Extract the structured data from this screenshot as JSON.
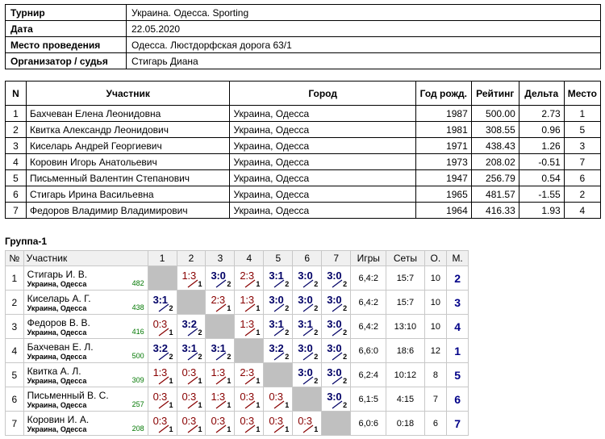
{
  "info": [
    {
      "label": "Турнир",
      "value": "Украина. Одесса.  Sporting"
    },
    {
      "label": "Дата",
      "value": "22.05.2020"
    },
    {
      "label": "Место проведения",
      "value": "Одесса. Люстдорфская дорога 63/1"
    },
    {
      "label": "Организатор / судья",
      "value": "Стигарь Диана"
    }
  ],
  "participants": {
    "headers": [
      "N",
      "Участник",
      "Город",
      "Год рожд.",
      "Рейтинг",
      "Дельта",
      "Место"
    ],
    "rows": [
      [
        "1",
        "Бахчеван Елена Леонидовна",
        "Украина, Одесса",
        "1987",
        "500.00",
        "2.73",
        "1"
      ],
      [
        "2",
        "Квитка Александр Леонидович",
        "Украина, Одесса",
        "1981",
        "308.55",
        "0.96",
        "5"
      ],
      [
        "3",
        "Киселарь Андрей Георгиевич",
        "Украина, Одесса",
        "1971",
        "438.43",
        "1.26",
        "3"
      ],
      [
        "4",
        "Коровин Игорь Анатольевич",
        "Украина, Одесса",
        "1973",
        "208.02",
        "-0.51",
        "7"
      ],
      [
        "5",
        "Письменный Валентин Степанович",
        "Украина, Одесса",
        "1947",
        "256.79",
        "0.54",
        "6"
      ],
      [
        "6",
        "Стигарь Ирина Васильевна",
        "Украина, Одесса",
        "1965",
        "481.57",
        "-1.55",
        "2"
      ],
      [
        "7",
        "Федоров Владимир Владимирович",
        "Украина, Одесса",
        "1964",
        "416.33",
        "1.93",
        "4"
      ]
    ]
  },
  "group": {
    "title": "Группа-1",
    "headers": [
      "№",
      "Участник",
      "1",
      "2",
      "3",
      "4",
      "5",
      "6",
      "7",
      "Игры",
      "Сеты",
      "О.",
      "М."
    ],
    "rows": [
      {
        "no": "1",
        "name": "Стигарь И. В.",
        "city": "Украина, Одесса",
        "rating": "482",
        "cells": [
          null,
          {
            "s": "1:3",
            "r": "1",
            "w": false
          },
          {
            "s": "3:0",
            "r": "2",
            "w": true
          },
          {
            "s": "2:3",
            "r": "1",
            "w": false
          },
          {
            "s": "3:1",
            "r": "2",
            "w": true
          },
          {
            "s": "3:0",
            "r": "2",
            "w": true
          },
          {
            "s": "3:0",
            "r": "2",
            "w": true
          }
        ],
        "games": "6,4:2",
        "sets": "15:7",
        "points": "10",
        "place": "2"
      },
      {
        "no": "2",
        "name": "Киселарь А. Г.",
        "city": "Украина, Одесса",
        "rating": "438",
        "cells": [
          {
            "s": "3:1",
            "r": "2",
            "w": true
          },
          null,
          {
            "s": "2:3",
            "r": "1",
            "w": false
          },
          {
            "s": "1:3",
            "r": "1",
            "w": false
          },
          {
            "s": "3:0",
            "r": "2",
            "w": true
          },
          {
            "s": "3:0",
            "r": "2",
            "w": true
          },
          {
            "s": "3:0",
            "r": "2",
            "w": true
          }
        ],
        "games": "6,4:2",
        "sets": "15:7",
        "points": "10",
        "place": "3"
      },
      {
        "no": "3",
        "name": "Федоров В. В.",
        "city": "Украина, Одесса",
        "rating": "416",
        "cells": [
          {
            "s": "0:3",
            "r": "1",
            "w": false
          },
          {
            "s": "3:2",
            "r": "2",
            "w": true
          },
          null,
          {
            "s": "1:3",
            "r": "1",
            "w": false
          },
          {
            "s": "3:1",
            "r": "2",
            "w": true
          },
          {
            "s": "3:1",
            "r": "2",
            "w": true
          },
          {
            "s": "3:0",
            "r": "2",
            "w": true
          }
        ],
        "games": "6,4:2",
        "sets": "13:10",
        "points": "10",
        "place": "4"
      },
      {
        "no": "4",
        "name": "Бахчеван Е. Л.",
        "city": "Украина, Одесса",
        "rating": "500",
        "cells": [
          {
            "s": "3:2",
            "r": "2",
            "w": true
          },
          {
            "s": "3:1",
            "r": "2",
            "w": true
          },
          {
            "s": "3:1",
            "r": "2",
            "w": true
          },
          null,
          {
            "s": "3:2",
            "r": "2",
            "w": true
          },
          {
            "s": "3:0",
            "r": "2",
            "w": true
          },
          {
            "s": "3:0",
            "r": "2",
            "w": true
          }
        ],
        "games": "6,6:0",
        "sets": "18:6",
        "points": "12",
        "place": "1"
      },
      {
        "no": "5",
        "name": "Квитка А. Л.",
        "city": "Украина, Одесса",
        "rating": "309",
        "cells": [
          {
            "s": "1:3",
            "r": "1",
            "w": false
          },
          {
            "s": "0:3",
            "r": "1",
            "w": false
          },
          {
            "s": "1:3",
            "r": "1",
            "w": false
          },
          {
            "s": "2:3",
            "r": "1",
            "w": false
          },
          null,
          {
            "s": "3:0",
            "r": "2",
            "w": true
          },
          {
            "s": "3:0",
            "r": "2",
            "w": true
          }
        ],
        "games": "6,2:4",
        "sets": "10:12",
        "points": "8",
        "place": "5"
      },
      {
        "no": "6",
        "name": "Письменный В. С.",
        "city": "Украина, Одесса",
        "rating": "257",
        "cells": [
          {
            "s": "0:3",
            "r": "1",
            "w": false
          },
          {
            "s": "0:3",
            "r": "1",
            "w": false
          },
          {
            "s": "1:3",
            "r": "1",
            "w": false
          },
          {
            "s": "0:3",
            "r": "1",
            "w": false
          },
          {
            "s": "0:3",
            "r": "1",
            "w": false
          },
          null,
          {
            "s": "3:0",
            "r": "2",
            "w": true
          }
        ],
        "games": "6,1:5",
        "sets": "4:15",
        "points": "7",
        "place": "6"
      },
      {
        "no": "7",
        "name": "Коровин И. А.",
        "city": "Украина, Одесса",
        "rating": "208",
        "cells": [
          {
            "s": "0:3",
            "r": "1",
            "w": false
          },
          {
            "s": "0:3",
            "r": "1",
            "w": false
          },
          {
            "s": "0:3",
            "r": "1",
            "w": false
          },
          {
            "s": "0:3",
            "r": "1",
            "w": false
          },
          {
            "s": "0:3",
            "r": "1",
            "w": false
          },
          {
            "s": "0:3",
            "r": "1",
            "w": false
          },
          null
        ],
        "games": "6,0:6",
        "sets": "0:18",
        "points": "6",
        "place": "7"
      }
    ]
  },
  "colors": {
    "win": "#000066",
    "loss": "#880000",
    "rating": "#007700",
    "diag": "#c0c0c0",
    "place": "#000088"
  }
}
